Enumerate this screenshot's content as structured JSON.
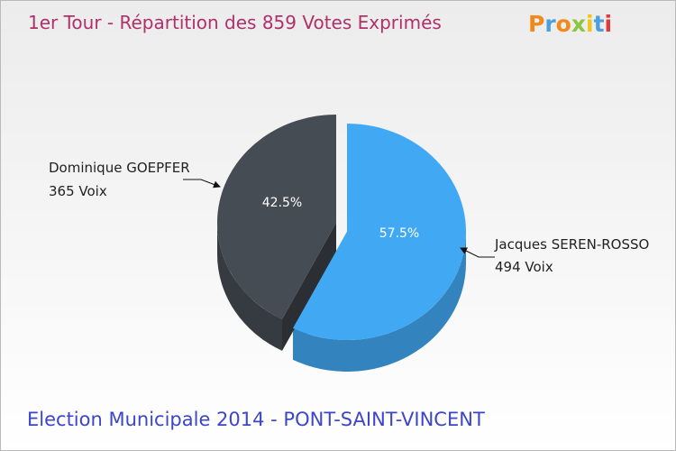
{
  "title": "1er Tour - Répartition des 859 Votes Exprimés",
  "footer": "Election Municipale 2014 - PONT-SAINT-VINCENT",
  "logo": "Proxiti",
  "colors": {
    "goepfer": "#454c54",
    "seren_rosso": "#41a9f4"
  },
  "chart_data": {
    "type": "pie",
    "title": "1er Tour - Répartition des 859 Votes Exprimés",
    "total": 859,
    "slices": [
      {
        "name": "Jacques SEREN-ROSSO",
        "votes_label": "494 Voix",
        "votes": 494,
        "percent": 57.5,
        "percent_label": "57.5%",
        "color": "#41a9f4"
      },
      {
        "name": "Dominique GOEPFER",
        "votes_label": "365 Voix",
        "votes": 365,
        "percent": 42.5,
        "percent_label": "42.5%",
        "color": "#454c54"
      }
    ]
  }
}
